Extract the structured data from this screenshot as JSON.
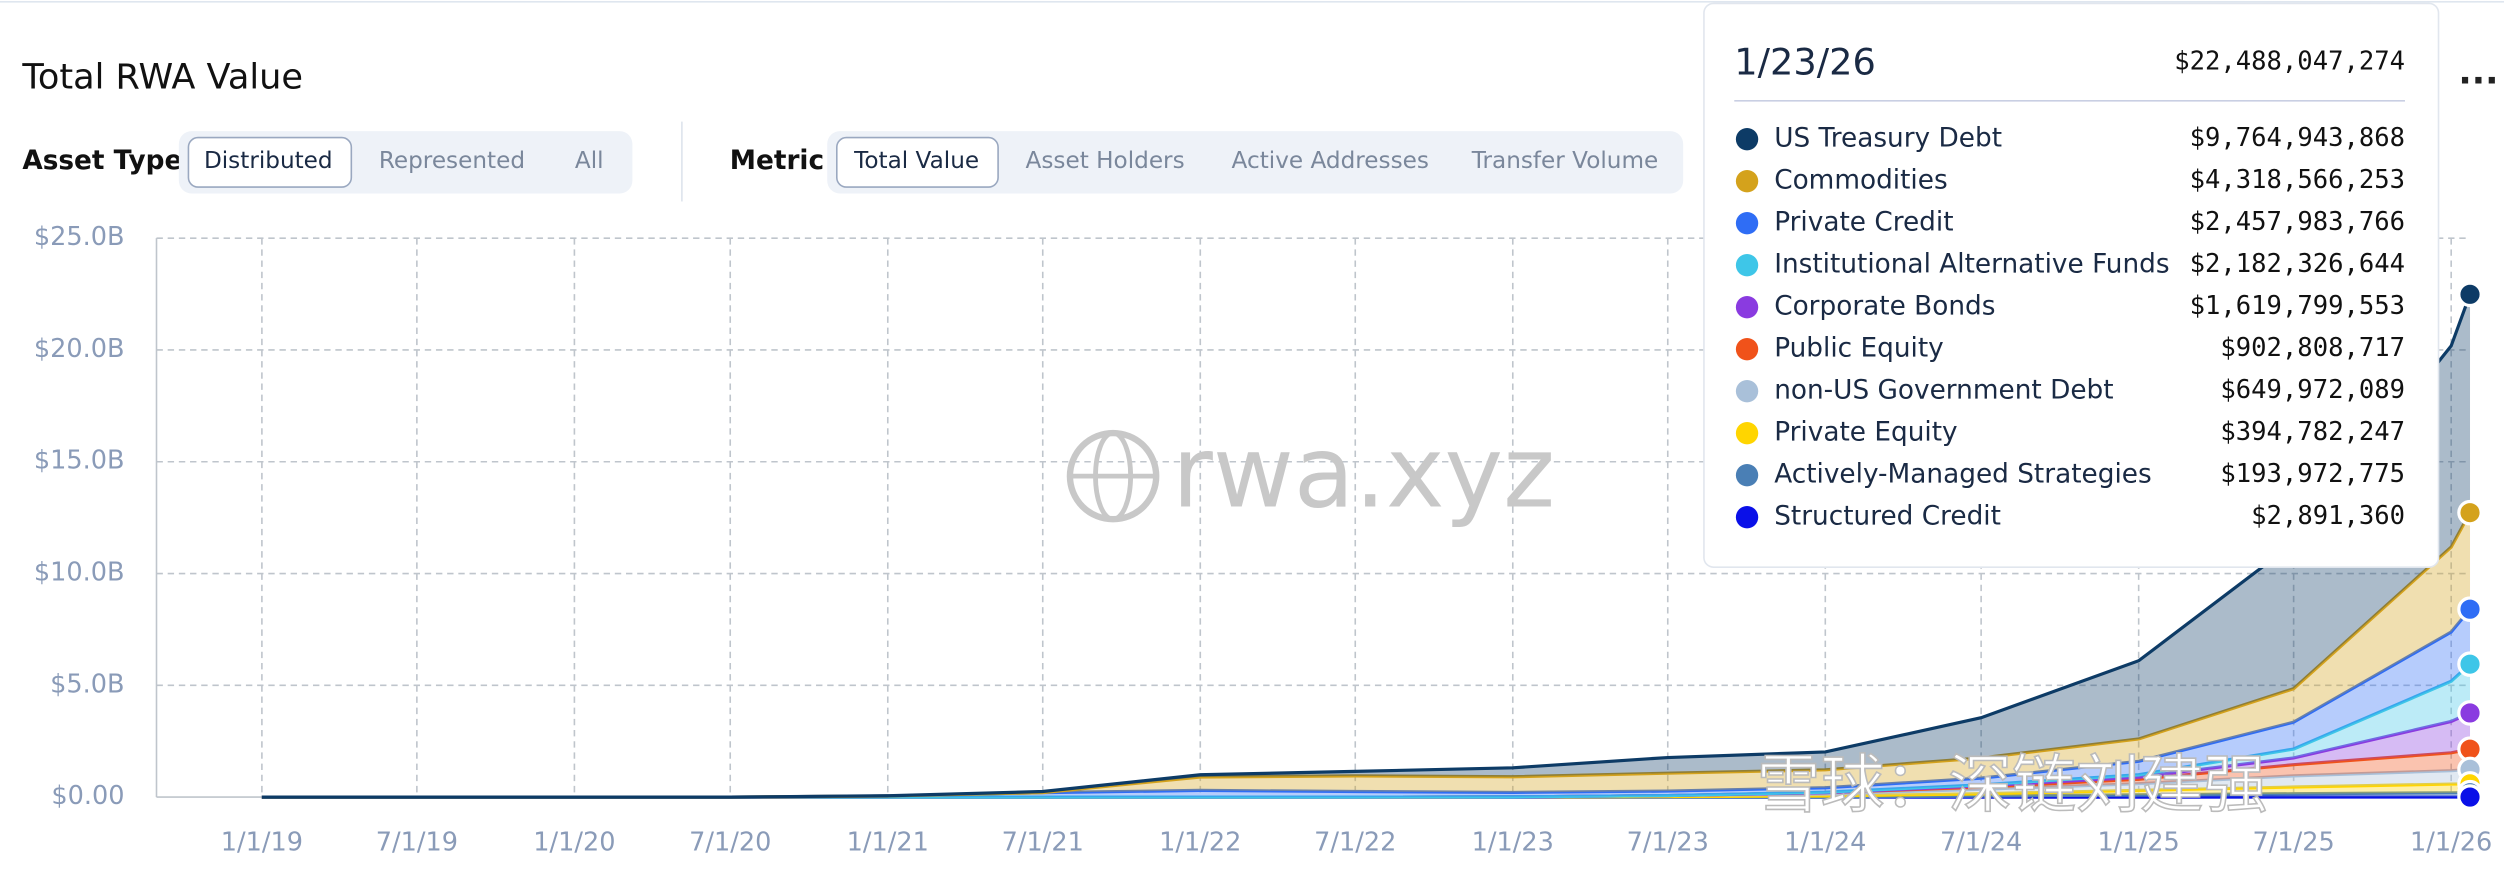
{
  "header": {
    "title": "Total RWA Value",
    "menu": "..."
  },
  "controls": {
    "asset_type_label": "Asset Type",
    "asset_type_options": [
      "Distributed",
      "Represented",
      "All"
    ],
    "metric_label": "Metric",
    "metric_options": [
      "Total Value",
      "Asset Holders",
      "Active Addresses",
      "Transfer Volume"
    ]
  },
  "watermarks": [
    "rwa.xyz",
    "雪球：深链刘建强"
  ],
  "chart_data": {
    "type": "stacked-area",
    "x": [
      "1/1/19",
      "7/1/19",
      "1/1/20",
      "7/1/20",
      "1/1/21",
      "7/1/21",
      "1/1/22",
      "7/1/22",
      "1/1/23",
      "7/1/23",
      "1/1/24",
      "7/1/24",
      "1/1/25",
      "7/1/25",
      "1/1/26",
      "1/23/26"
    ],
    "ylim": [
      0,
      25000000000
    ],
    "yticks": [
      {
        "value": 0,
        "label": "$0.00"
      },
      {
        "value": 5000000000,
        "label": "$5.0B"
      },
      {
        "value": 10000000000,
        "label": "$10.0B"
      },
      {
        "value": 15000000000,
        "label": "$15.0B"
      },
      {
        "value": 20000000000,
        "label": "$20.0B"
      },
      {
        "value": 25000000000,
        "label": "$25.0B"
      }
    ],
    "grid": true,
    "tooltip_total": {
      "value": 22488047274,
      "label": "$22,488,047,274"
    },
    "series": [
      {
        "name": "US Treasury Debt",
        "color": "#0d3b66",
        "values": [
          0,
          0,
          0,
          0,
          10000000,
          50000000,
          100000000,
          200000000,
          400000000,
          700000000,
          800000000,
          1800000000,
          3500000000,
          6500000000,
          9000000000,
          9764943868
        ],
        "value_labels": [
          null,
          null,
          null,
          null,
          null,
          null,
          null,
          null,
          null,
          null,
          null,
          null,
          null,
          null,
          null,
          "$9,764,943,868"
        ]
      },
      {
        "name": "Commodities",
        "color": "#d4a21c",
        "values": [
          0,
          0,
          0,
          0,
          0,
          0,
          600000000,
          700000000,
          700000000,
          800000000,
          800000000,
          900000000,
          1000000000,
          1500000000,
          3800000000,
          4318566253
        ],
        "value_labels": [
          null,
          null,
          null,
          null,
          null,
          null,
          null,
          null,
          null,
          null,
          null,
          null,
          null,
          null,
          null,
          "$4,318,566,253"
        ]
      },
      {
        "name": "Private Credit",
        "color": "#2f6df5",
        "values": [
          0,
          0,
          0,
          0,
          50000000,
          200000000,
          300000000,
          250000000,
          200000000,
          200000000,
          200000000,
          300000000,
          600000000,
          1200000000,
          2200000000,
          2457983766
        ],
        "value_labels": [
          null,
          null,
          null,
          null,
          null,
          null,
          null,
          null,
          null,
          null,
          null,
          null,
          null,
          null,
          null,
          "$2,457,983,766"
        ]
      },
      {
        "name": "Institutional Alternative Funds",
        "color": "#3ec6e8",
        "values": [
          0,
          0,
          0,
          0,
          0,
          0,
          0,
          0,
          0,
          0,
          20000000,
          50000000,
          100000000,
          400000000,
          1800000000,
          2182326644
        ],
        "value_labels": [
          null,
          null,
          null,
          null,
          null,
          null,
          null,
          null,
          null,
          null,
          null,
          null,
          null,
          null,
          null,
          "$2,182,326,644"
        ]
      },
      {
        "name": "Corporate Bonds",
        "color": "#8a3be0",
        "values": [
          0,
          0,
          0,
          0,
          0,
          0,
          0,
          0,
          0,
          0,
          0,
          50000000,
          100000000,
          300000000,
          1400000000,
          1619799553
        ],
        "value_labels": [
          null,
          null,
          null,
          null,
          null,
          null,
          null,
          null,
          null,
          null,
          null,
          null,
          null,
          null,
          null,
          "$1,619,799,553"
        ]
      },
      {
        "name": "Public Equity",
        "color": "#f0521a",
        "values": [
          0,
          0,
          0,
          0,
          0,
          0,
          0,
          0,
          0,
          0,
          50000000,
          100000000,
          200000000,
          500000000,
          800000000,
          902808717
        ],
        "value_labels": [
          null,
          null,
          null,
          null,
          null,
          null,
          null,
          null,
          null,
          null,
          null,
          null,
          null,
          null,
          null,
          "$902,808,717"
        ]
      },
      {
        "name": "non-US Government Debt",
        "color": "#a9c0d9",
        "values": [
          0,
          0,
          0,
          0,
          0,
          0,
          0,
          0,
          0,
          50000000,
          100000000,
          200000000,
          300000000,
          500000000,
          600000000,
          649972089
        ],
        "value_labels": [
          null,
          null,
          null,
          null,
          null,
          null,
          null,
          null,
          null,
          null,
          null,
          null,
          null,
          null,
          null,
          "$649,972,089"
        ]
      },
      {
        "name": "Private Equity",
        "color": "#ffd500",
        "values": [
          0,
          0,
          0,
          0,
          0,
          0,
          0,
          0,
          10000000,
          20000000,
          50000000,
          100000000,
          200000000,
          300000000,
          390000000,
          394782247
        ],
        "value_labels": [
          null,
          null,
          null,
          null,
          null,
          null,
          null,
          null,
          null,
          null,
          null,
          null,
          null,
          null,
          null,
          "$394,782,247"
        ]
      },
      {
        "name": "Actively-Managed Strategies",
        "color": "#4a7fb5",
        "values": [
          0,
          0,
          0,
          0,
          0,
          0,
          0,
          0,
          0,
          0,
          0,
          50000000,
          100000000,
          150000000,
          190000000,
          193972775
        ],
        "value_labels": [
          null,
          null,
          null,
          null,
          null,
          null,
          null,
          null,
          null,
          null,
          null,
          null,
          null,
          null,
          null,
          "$193,972,775"
        ]
      },
      {
        "name": "Structured Credit",
        "color": "#0a10e8",
        "values": [
          0,
          0,
          0,
          0,
          0,
          0,
          0,
          0,
          0,
          0,
          0,
          0,
          0,
          1000000,
          2500000,
          2891360
        ],
        "value_labels": [
          null,
          null,
          null,
          null,
          null,
          null,
          null,
          null,
          null,
          null,
          null,
          null,
          null,
          null,
          null,
          "$2,891,360"
        ]
      }
    ]
  }
}
